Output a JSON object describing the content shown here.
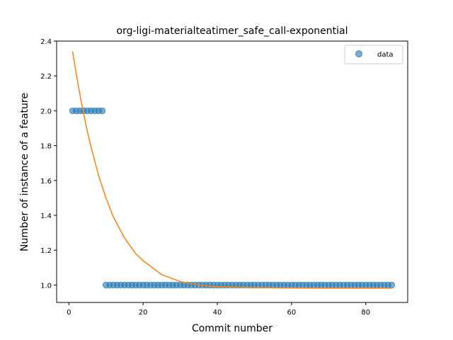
{
  "chart_data": {
    "type": "scatter",
    "title": "org-ligi-materialteatimer_safe_call-exponential",
    "xlabel": "Commit number",
    "ylabel": "Number of instance of a feature",
    "xlim": [
      -3.3,
      91.3
    ],
    "ylim": [
      0.9,
      2.4
    ],
    "xticks": [
      0,
      20,
      40,
      60,
      80
    ],
    "yticks": [
      1.0,
      1.2,
      1.4,
      1.6,
      1.8,
      2.0,
      2.2,
      2.4
    ],
    "xtick_labels": [
      "0",
      "20",
      "40",
      "60",
      "80"
    ],
    "ytick_labels": [
      "1.0",
      "1.2",
      "1.4",
      "1.6",
      "1.8",
      "2.0",
      "2.2",
      "2.4"
    ],
    "legend": {
      "position": "upper right",
      "entries": [
        "data"
      ]
    },
    "series": [
      {
        "name": "data",
        "kind": "scatter",
        "color": "#1f77b4",
        "x_start": 1,
        "x_end": 87,
        "y_rule": "2 for commit numbers 1–9, 1 for commit numbers 10–87"
      },
      {
        "kind": "line",
        "color": "#ff7f0e",
        "model": "exponential",
        "points": [
          [
            1,
            2.34
          ],
          [
            2,
            2.21
          ],
          [
            3,
            2.09
          ],
          [
            4,
            1.98
          ],
          [
            5,
            1.88
          ],
          [
            6,
            1.79
          ],
          [
            8,
            1.63
          ],
          [
            10,
            1.5
          ],
          [
            12,
            1.39
          ],
          [
            15,
            1.27
          ],
          [
            18,
            1.18
          ],
          [
            20,
            1.14
          ],
          [
            25,
            1.06
          ],
          [
            30,
            1.02
          ],
          [
            35,
            1.0
          ],
          [
            40,
            0.99
          ],
          [
            50,
            0.985
          ],
          [
            60,
            0.983
          ],
          [
            70,
            0.982
          ],
          [
            80,
            0.982
          ],
          [
            87,
            0.982
          ]
        ]
      }
    ],
    "grid": false
  }
}
